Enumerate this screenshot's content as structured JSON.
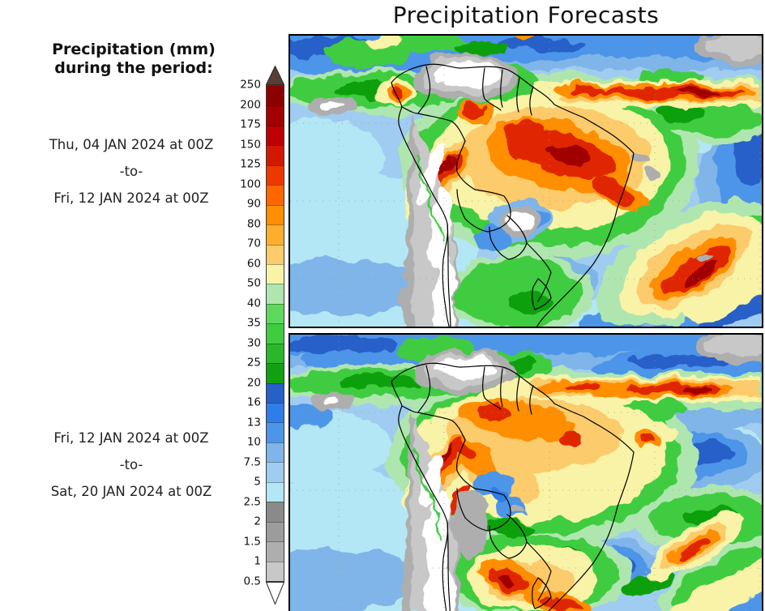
{
  "title": "Precipitation Forecasts",
  "legend": {
    "heading": [
      "Precipitation (mm)",
      "during the period:"
    ],
    "levels": [
      "250",
      "200",
      "175",
      "150",
      "125",
      "100",
      "90",
      "80",
      "70",
      "60",
      "50",
      "40",
      "35",
      "30",
      "25",
      "20",
      "16",
      "13",
      "10",
      "7.5",
      "5",
      "2.5",
      "2",
      "1.5",
      "1",
      "0.5"
    ],
    "band_colors_top_to_bottom": [
      "#8E0000",
      "#A30000",
      "#BE0000",
      "#D41800",
      "#EE3800",
      "#FF6600",
      "#FF8E00",
      "#FFAE2C",
      "#FCCB6C",
      "#F8F3A6",
      "#AFE6AF",
      "#5ED95E",
      "#3FCC3F",
      "#2AB82A",
      "#11A011",
      "#2660C8",
      "#2F7DE8",
      "#4D95E8",
      "#7FB5E8",
      "#9FCCF0",
      "#B3E7F5",
      "#8A8A8A",
      "#9C9C9C",
      "#AEAEAE",
      "#C8C8C8"
    ],
    "overflow_arrow_color": "#5A3D33",
    "underflow_arrow_color": "#FFFFFF"
  },
  "panels": [
    {
      "period_start": "Thu, 04 JAN 2024 at 00Z",
      "separator": "-to-",
      "period_end": "Fri, 12 JAN 2024 at 00Z"
    },
    {
      "period_start": "Fri, 12 JAN 2024 at 00Z",
      "separator": "-to-",
      "period_end": "Sat, 20 JAN 2024 at 00Z"
    }
  ],
  "chart_data": {
    "type": "heatmap",
    "title": "Precipitation Forecasts",
    "legend_title": "Precipitation (mm) during the period:",
    "units": "mm",
    "region": "South America",
    "legend_position": "left",
    "levels_mm": [
      0.5,
      1,
      1.5,
      2,
      2.5,
      5,
      7.5,
      10,
      13,
      16,
      20,
      25,
      30,
      35,
      40,
      50,
      60,
      70,
      80,
      90,
      100,
      125,
      150,
      175,
      200,
      250
    ],
    "band_colors_low_to_high": [
      "#C8C8C8",
      "#AEAEAE",
      "#9C9C9C",
      "#8A8A8A",
      "#B3E7F5",
      "#9FCCF0",
      "#7FB5E8",
      "#4D95E8",
      "#2F7DE8",
      "#2660C8",
      "#11A011",
      "#2AB82A",
      "#3FCC3F",
      "#5ED95E",
      "#AFE6AF",
      "#F8F3A6",
      "#FCCB6C",
      "#FFAE2C",
      "#FF8E00",
      "#FF6600",
      "#EE3800",
      "#D41800",
      "#BE0000",
      "#A30000",
      "#8E0000"
    ],
    "panels": [
      {
        "period_start": "Thu, 04 JAN 2024 at 00Z",
        "period_end": "Fri, 12 JAN 2024 at 00Z"
      },
      {
        "period_start": "Fri, 12 JAN 2024 at 00Z",
        "period_end": "Sat, 20 JAN 2024 at 00Z"
      }
    ]
  }
}
